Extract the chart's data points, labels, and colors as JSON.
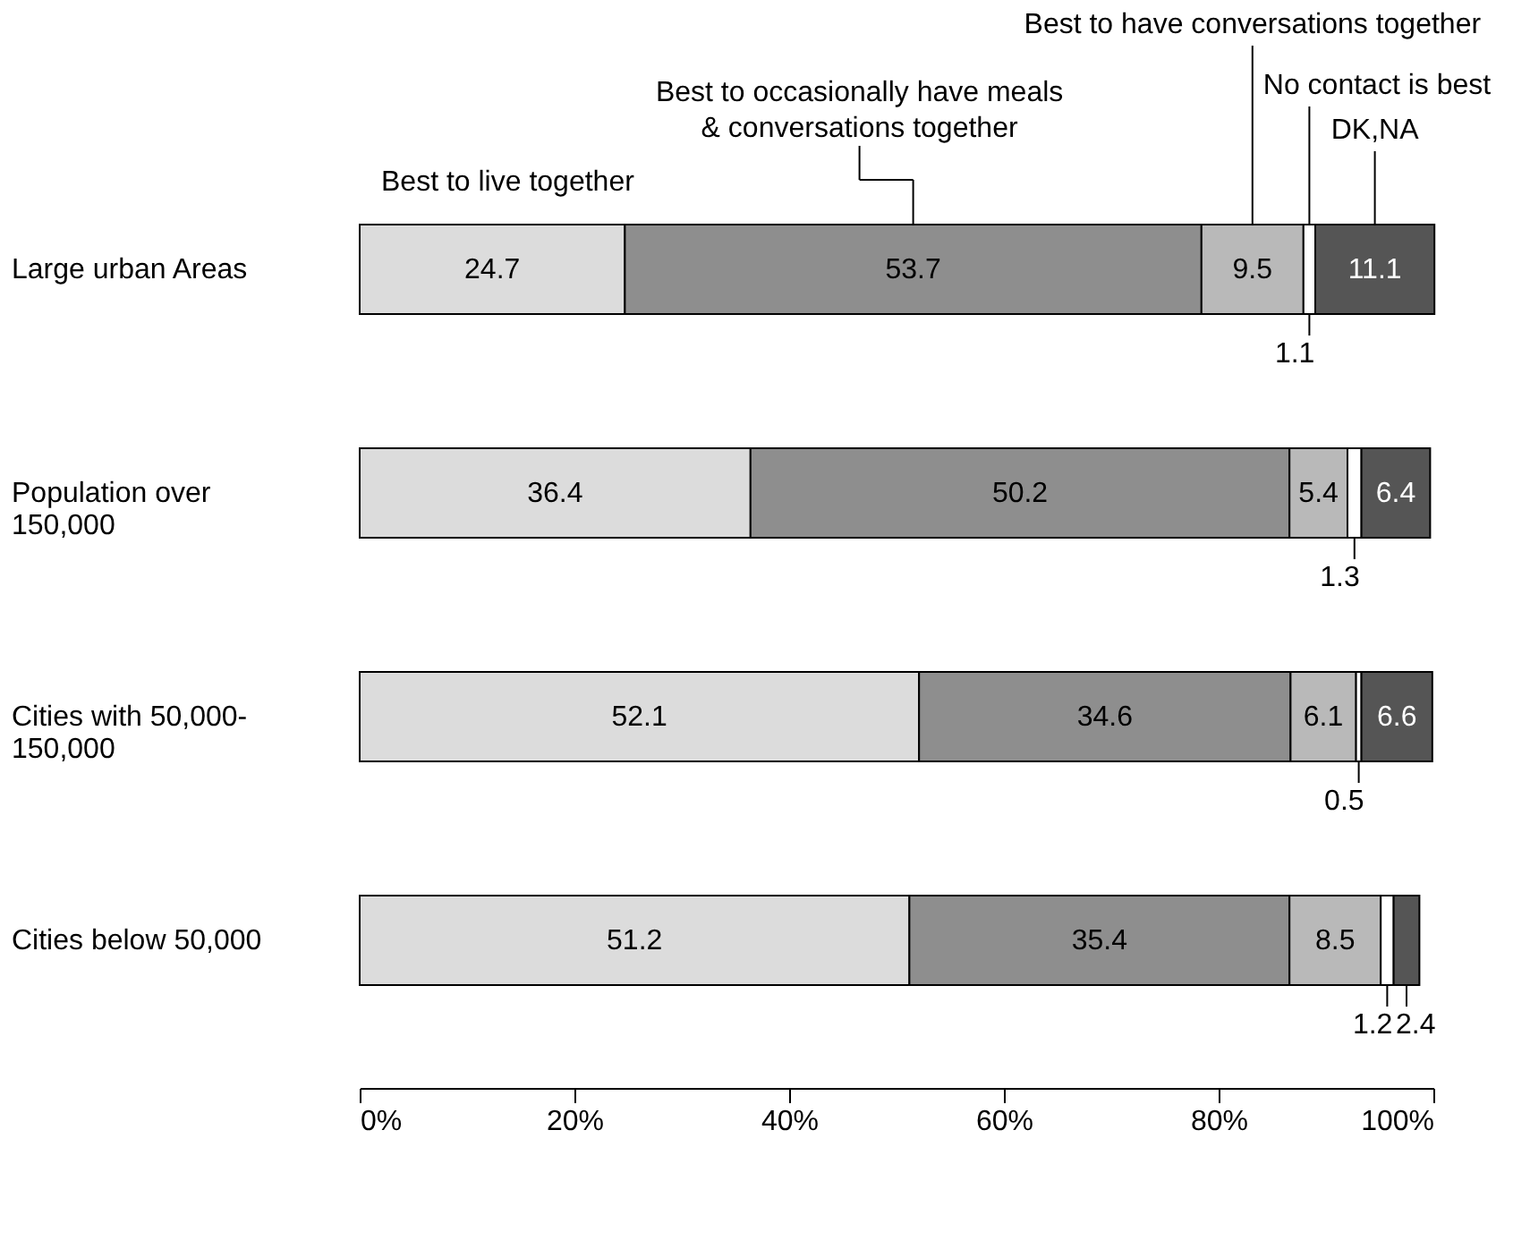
{
  "chart_data": {
    "type": "bar",
    "orientation": "horizontal",
    "stacked": true,
    "data_labels": true,
    "legend": false,
    "grid": false,
    "categories": [
      "Large urban Areas",
      "Population over\n150,000",
      "Cities with 50,000-\n150,000",
      "Cities below 50,000"
    ],
    "series": [
      {
        "name": "Best to live together",
        "color": "#dcdcdc",
        "values": [
          24.7,
          36.4,
          52.1,
          51.2
        ]
      },
      {
        "name": "Best to occasionally have meals\n& conversations together",
        "color": "#8e8e8e",
        "values": [
          53.7,
          50.2,
          34.6,
          35.4
        ]
      },
      {
        "name": "Best to have conversations together",
        "color": "#b9b9b9",
        "values": [
          9.5,
          5.4,
          6.1,
          8.5
        ]
      },
      {
        "name": "No contact is best",
        "color": "#ffffff",
        "values": [
          1.1,
          1.3,
          0.5,
          1.2
        ]
      },
      {
        "name": "DK,NA",
        "color": "#555555",
        "values": [
          11.1,
          6.4,
          6.6,
          2.4
        ]
      }
    ],
    "xlim": [
      0,
      100
    ],
    "xticks": [
      {
        "value": 0,
        "label": "0%"
      },
      {
        "value": 20,
        "label": "20%"
      },
      {
        "value": 40,
        "label": "40%"
      },
      {
        "value": 60,
        "label": "60%"
      },
      {
        "value": 80,
        "label": "80%"
      },
      {
        "value": 100,
        "label": "100%"
      }
    ]
  }
}
